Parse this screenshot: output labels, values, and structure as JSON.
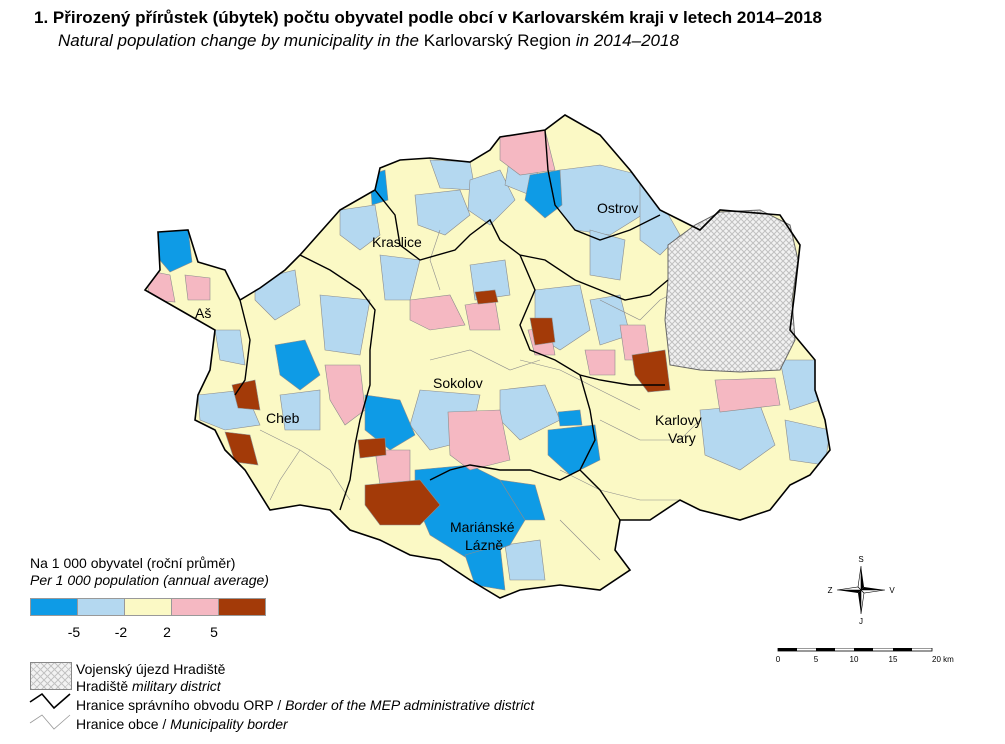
{
  "title": "1. Přirozený přírůstek (úbytek) počtu obyvatel podle obcí v Karlovarském kraji v letech 2014–2018",
  "subtitle": {
    "part1": "Natural population change by municipality in the ",
    "region": "Karlovarský Region",
    "part2": " in 2014–2018"
  },
  "towns": [
    "Ostrov",
    "Kraslice",
    "Aš",
    "Sokolov",
    "Cheb",
    "Karlovy",
    "Vary",
    "Mariánské",
    "Lázně"
  ],
  "legend": {
    "title_cs": "Na 1 000 obyvatel (roční průměr)",
    "title_en": "Per 1 000 population (annual average)",
    "classes": [
      {
        "color": "#0e9be6"
      },
      {
        "color": "#b4d8f0"
      },
      {
        "color": "#fbf9c5"
      },
      {
        "color": "#f5b8c2"
      },
      {
        "color": "#a33a08"
      }
    ],
    "ticks": [
      "-5",
      "-2",
      "2",
      "5"
    ],
    "military_cs": "Vojenský újezd Hradiště",
    "military_en_a": "Hradiště",
    "military_en_b": " military district",
    "orp_cs": "Hranice správního obvodu ORP / ",
    "orp_en": "Border of the MEP administrative district",
    "muni_cs": "Hranice obce / ",
    "muni_en": "Municipality border"
  },
  "compass": {
    "n": "S",
    "w": "Z",
    "e": "V",
    "s": "J"
  },
  "scale": {
    "ticks": [
      "0",
      "5",
      "10",
      "15",
      "20 km"
    ]
  }
}
